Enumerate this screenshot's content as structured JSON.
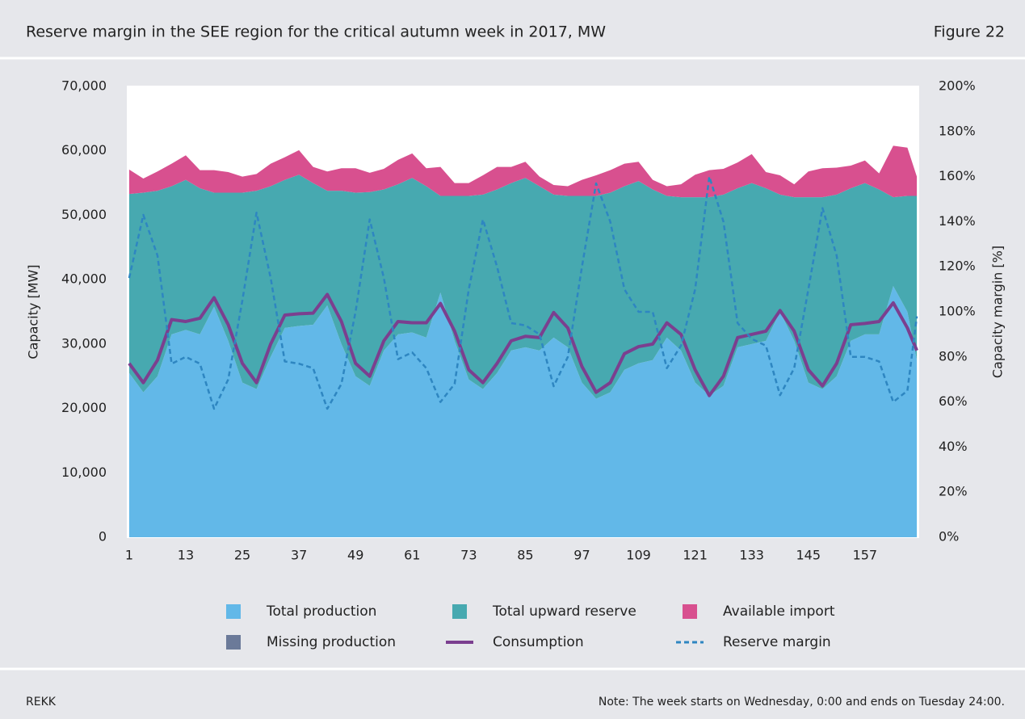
{
  "header": {
    "title": "Reserve margin in the SEE region for the critical autumn week in 2017, MW",
    "figure": "Figure 22"
  },
  "footer": {
    "source": "REKK",
    "note": "Note: The week starts on Wednesday, 0:00 and ends on Tuesday 24:00."
  },
  "chart_data": {
    "type": "area",
    "y_label": "Capacity [MW]",
    "y2_label": "Capacity margin [%]",
    "x": [
      1,
      4,
      7,
      10,
      13,
      16,
      19,
      22,
      25,
      28,
      31,
      34,
      37,
      40,
      43,
      46,
      49,
      52,
      55,
      58,
      61,
      64,
      67,
      70,
      73,
      76,
      79,
      82,
      85,
      88,
      91,
      94,
      97,
      100,
      103,
      106,
      109,
      112,
      115,
      118,
      121,
      124,
      127,
      130,
      133,
      136,
      139,
      142,
      145,
      148,
      151,
      154,
      157,
      160,
      163,
      166,
      168
    ],
    "xlim": [
      0.5,
      168.5
    ],
    "xticks": [
      1,
      13,
      25,
      37,
      49,
      61,
      73,
      85,
      97,
      109,
      121,
      133,
      145,
      157
    ],
    "ylim": [
      0,
      70000
    ],
    "yticks": [
      0,
      {
        "value": 10000,
        "label": "10,000"
      },
      {
        "value": 20000,
        "label": "20,000"
      },
      {
        "value": 30000,
        "label": "30,000"
      },
      {
        "value": 40000,
        "label": "40,000"
      },
      {
        "value": 50000,
        "label": "50,000"
      },
      {
        "value": 60000,
        "label": "60,000"
      },
      {
        "value": 70000,
        "label": "70,000"
      }
    ],
    "y2lim": [
      0,
      200
    ],
    "y2ticks": [
      {
        "value": 0,
        "label": "0%"
      },
      {
        "value": 20,
        "label": "20%"
      },
      {
        "value": 40,
        "label": "40%"
      },
      {
        "value": 60,
        "label": "60%"
      },
      {
        "value": 80,
        "label": "80%"
      },
      {
        "value": 100,
        "label": "100%"
      },
      {
        "value": 120,
        "label": "120%"
      },
      {
        "value": 140,
        "label": "140%"
      },
      {
        "value": 160,
        "label": "160%"
      },
      {
        "value": 180,
        "label": "180%"
      },
      {
        "value": 200,
        "label": "200%"
      }
    ],
    "grid": true,
    "series": [
      {
        "name": "Total production",
        "kind": "stack",
        "color": "#62b8e8",
        "values": [
          25500,
          22500,
          25000,
          31500,
          32200,
          31500,
          35800,
          30500,
          24000,
          23000,
          28000,
          32500,
          32800,
          33000,
          36000,
          30000,
          25000,
          23500,
          29000,
          31500,
          31800,
          31000,
          38000,
          30500,
          24500,
          23000,
          25500,
          29000,
          29500,
          29000,
          31000,
          29500,
          24000,
          21500,
          22500,
          26000,
          27000,
          27500,
          31000,
          29000,
          24000,
          22000,
          23500,
          29500,
          30000,
          30500,
          35000,
          30500,
          24000,
          23000,
          25000,
          30500,
          31500,
          31500,
          39000,
          35000,
          27500
        ]
      },
      {
        "name": "Total upward reserve",
        "kind": "stack",
        "color": "#47a9b0",
        "values": [
          27800,
          31000,
          28800,
          23000,
          23300,
          22700,
          17700,
          23000,
          29500,
          30800,
          26500,
          23000,
          23500,
          22000,
          17800,
          23800,
          28500,
          30100,
          25000,
          23300,
          24000,
          23500,
          15000,
          22500,
          28500,
          30200,
          28500,
          26000,
          26300,
          25500,
          22200,
          23500,
          29000,
          31500,
          31000,
          28500,
          28300,
          26500,
          22000,
          23800,
          28800,
          30800,
          29700,
          24700,
          25000,
          23700,
          18200,
          22300,
          28800,
          29800,
          28200,
          23700,
          23500,
          22500,
          13800,
          18000,
          25500
        ]
      },
      {
        "name": "Available import",
        "kind": "stack",
        "color": "#d8508f",
        "values": [
          3800,
          2200,
          3000,
          3500,
          3800,
          2800,
          3500,
          3200,
          2500,
          2600,
          3500,
          3500,
          3800,
          2500,
          3000,
          3500,
          3800,
          3000,
          3200,
          3800,
          3800,
          2800,
          4500,
          2000,
          2000,
          3000,
          3500,
          2500,
          2500,
          1500,
          1500,
          1500,
          2500,
          3200,
          3500,
          3500,
          3000,
          1500,
          1500,
          2000,
          3500,
          4200,
          4000,
          4000,
          4500,
          2500,
          3000,
          2000,
          4000,
          4500,
          4200,
          3500,
          3500,
          2500,
          8000,
          7500,
          3000
        ]
      },
      {
        "name": "Missing production",
        "kind": "stack",
        "color": "#6b7a99",
        "values": [
          0,
          0,
          0,
          0,
          0,
          0,
          0,
          0,
          0,
          0,
          0,
          0,
          0,
          0,
          0,
          0,
          0,
          0,
          0,
          0,
          0,
          0,
          0,
          0,
          0,
          0,
          0,
          0,
          0,
          0,
          0,
          0,
          0,
          0,
          0,
          0,
          0,
          0,
          0,
          0,
          0,
          0,
          0,
          0,
          0,
          0,
          0,
          0,
          0,
          0,
          0,
          0,
          0,
          0,
          0,
          0,
          0
        ]
      },
      {
        "name": "Consumption",
        "kind": "line",
        "color": "#7b3f8f",
        "values": [
          27000,
          24000,
          27500,
          33800,
          33500,
          34000,
          37200,
          33000,
          27000,
          24000,
          30000,
          34500,
          34700,
          34800,
          37700,
          33500,
          27000,
          25000,
          30500,
          33500,
          33300,
          33300,
          36300,
          32000,
          26000,
          24000,
          27000,
          30500,
          31200,
          31000,
          34900,
          32500,
          26500,
          22500,
          24000,
          28500,
          29600,
          30000,
          33300,
          31500,
          26000,
          22000,
          25000,
          31000,
          31500,
          32000,
          35200,
          32000,
          26000,
          23500,
          27000,
          33000,
          33200,
          33500,
          36400,
          32500,
          29000
        ]
      },
      {
        "name": "Reserve margin",
        "kind": "line",
        "dash": true,
        "axis": "y2",
        "color": "#2e86c1",
        "values": [
          115,
          143,
          125,
          77,
          80,
          77,
          57,
          70,
          105,
          144,
          115,
          78,
          77,
          75,
          57,
          68,
          100,
          141,
          115,
          79,
          82,
          75,
          60,
          68,
          110,
          141,
          120,
          95,
          94,
          90,
          67,
          80,
          120,
          157,
          140,
          110,
          100,
          100,
          75,
          85,
          110,
          160,
          140,
          95,
          88,
          85,
          63,
          75,
          110,
          146,
          125,
          80,
          80,
          78,
          60,
          65,
          98
        ]
      }
    ]
  }
}
